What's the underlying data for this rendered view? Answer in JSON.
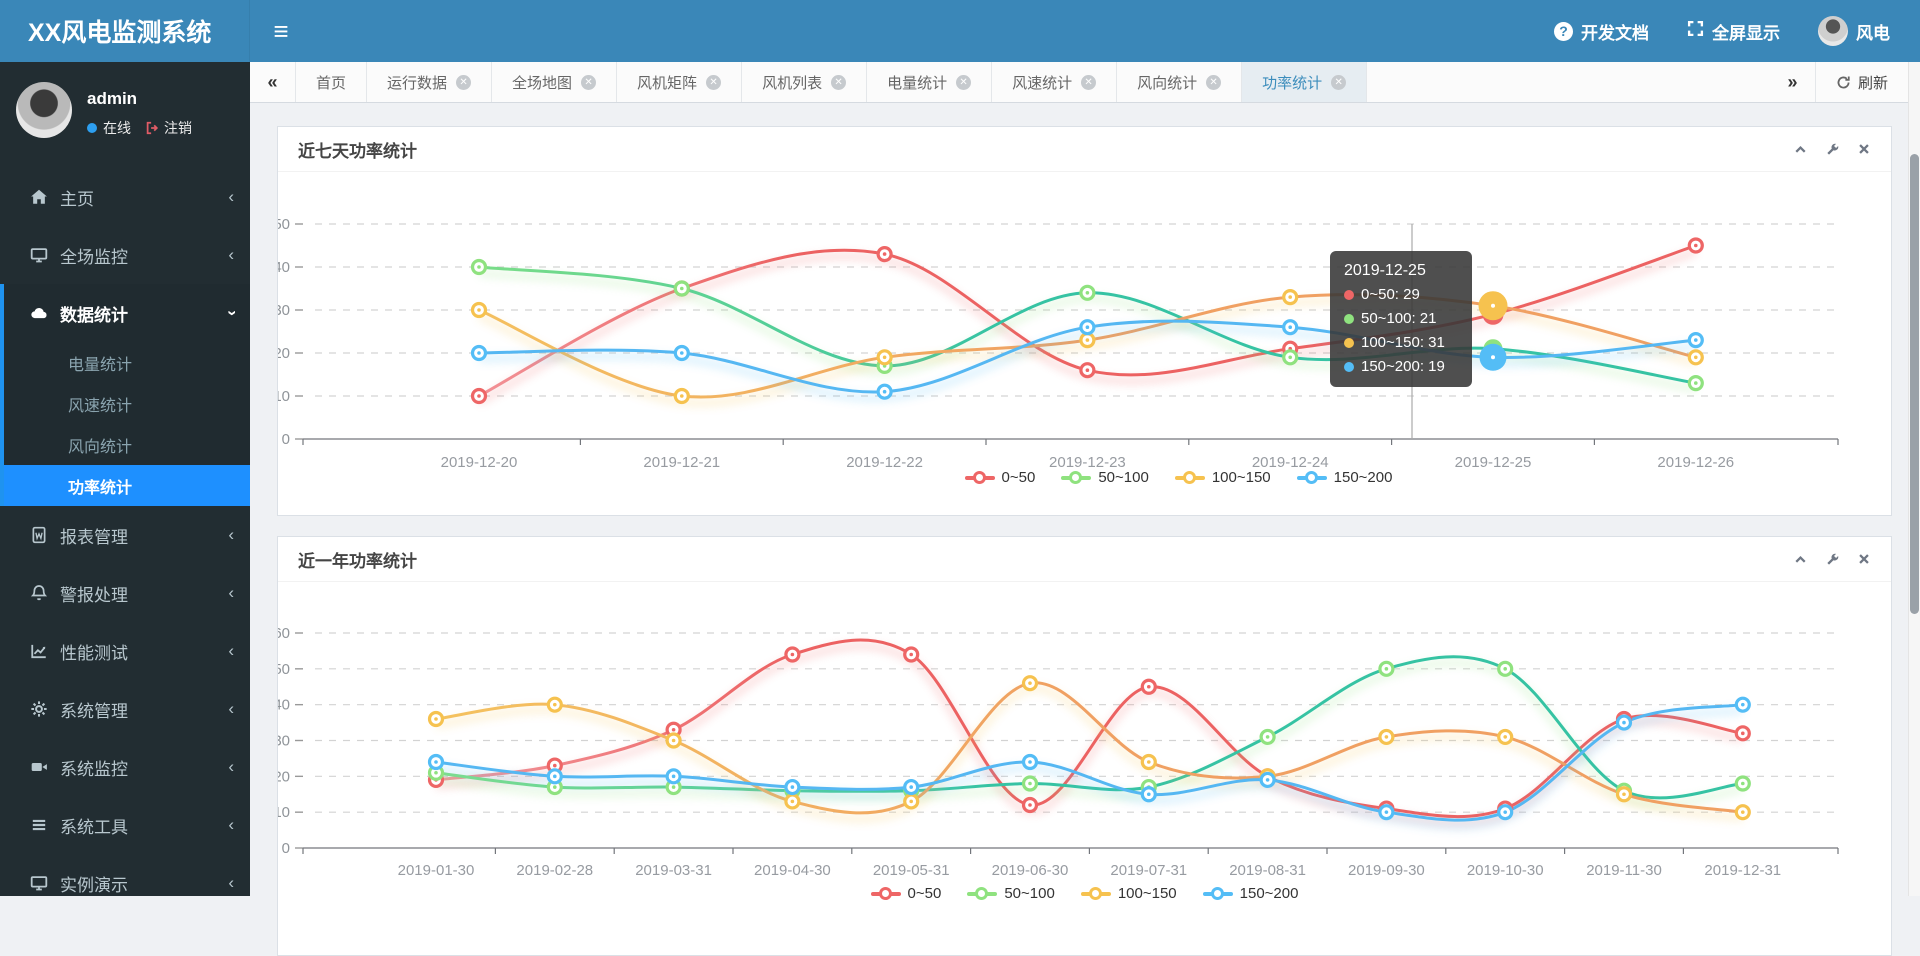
{
  "app": {
    "title": "XX风电监测系统"
  },
  "navbar": {
    "docs_label": "开发文档",
    "fullscreen_label": "全屏显示",
    "user_label": "风电"
  },
  "sidebar": {
    "user": {
      "name": "admin",
      "status": "在线",
      "logout": "注销"
    },
    "items": [
      {
        "label": "主页",
        "icon": "home"
      },
      {
        "label": "全场监控",
        "icon": "monitor"
      },
      {
        "label": "数据统计",
        "icon": "cloud",
        "active": true,
        "expanded": true,
        "children": [
          "电量统计",
          "风速统计",
          "风向统计",
          "功率统计"
        ],
        "active_child": "功率统计"
      },
      {
        "label": "报表管理",
        "icon": "file-word"
      },
      {
        "label": "警报处理",
        "icon": "bell"
      },
      {
        "label": "性能测试",
        "icon": "chart-line"
      },
      {
        "label": "系统管理",
        "icon": "gear"
      },
      {
        "label": "系统监控",
        "icon": "video"
      },
      {
        "label": "系统工具",
        "icon": "bars"
      },
      {
        "label": "实例演示",
        "icon": "desktop"
      }
    ]
  },
  "tabs": {
    "back": "«",
    "forward": "»",
    "refresh_label": "刷新",
    "items": [
      {
        "label": "首页",
        "closable": false,
        "active": false
      },
      {
        "label": "运行数据",
        "closable": true,
        "active": false
      },
      {
        "label": "全场地图",
        "closable": true,
        "active": false
      },
      {
        "label": "风机矩阵",
        "closable": true,
        "active": false
      },
      {
        "label": "风机列表",
        "closable": true,
        "active": false
      },
      {
        "label": "电量统计",
        "closable": true,
        "active": false
      },
      {
        "label": "风速统计",
        "closable": true,
        "active": false
      },
      {
        "label": "风向统计",
        "closable": true,
        "active": false
      },
      {
        "label": "功率统计",
        "closable": true,
        "active": true
      }
    ]
  },
  "panels": [
    {
      "title": "近七天功率统计"
    },
    {
      "title": "近一年功率统计"
    }
  ],
  "chart_data": [
    {
      "type": "line",
      "title": "近七天功率统计",
      "categories": [
        "2019-12-20",
        "2019-12-21",
        "2019-12-22",
        "2019-12-23",
        "2019-12-24",
        "2019-12-25",
        "2019-12-26"
      ],
      "series": [
        {
          "name": "0~50",
          "color": "#ee6666",
          "values": [
            10,
            35,
            43,
            16,
            21,
            29,
            45
          ]
        },
        {
          "name": "50~100",
          "color": "#8fe27f",
          "values": [
            40,
            35,
            17,
            34,
            19,
            21,
            13
          ]
        },
        {
          "name": "100~150",
          "color": "#f6c24f",
          "values": [
            30,
            10,
            19,
            23,
            33,
            31,
            19
          ]
        },
        {
          "name": "150~200",
          "color": "#54bdf6",
          "values": [
            20,
            20,
            11,
            26,
            26,
            19,
            23
          ]
        }
      ],
      "ylim": [
        0,
        50
      ],
      "ytick_step": 10,
      "grid": "dashed",
      "legend_position": "bottom",
      "tooltip": {
        "title": "2019-12-25",
        "rows": [
          {
            "series": "0~50",
            "value": 29
          },
          {
            "series": "50~100",
            "value": 21
          },
          {
            "series": "100~150",
            "value": 31
          },
          {
            "series": "150~200",
            "value": 19
          }
        ]
      }
    },
    {
      "type": "line",
      "title": "近一年功率统计",
      "categories": [
        "2019-01-30",
        "2019-02-28",
        "2019-03-31",
        "2019-04-30",
        "2019-05-31",
        "2019-06-30",
        "2019-07-31",
        "2019-08-31",
        "2019-09-30",
        "2019-10-30",
        "2019-11-30",
        "2019-12-31"
      ],
      "series": [
        {
          "name": "0~50",
          "color": "#ee6666",
          "values": [
            19,
            23,
            33,
            54,
            54,
            12,
            45,
            20,
            11,
            11,
            36,
            32
          ]
        },
        {
          "name": "50~100",
          "color": "#8fe27f",
          "values": [
            21,
            17,
            17,
            16,
            16,
            18,
            17,
            31,
            50,
            50,
            16,
            18
          ]
        },
        {
          "name": "100~150",
          "color": "#f6c24f",
          "values": [
            36,
            40,
            30,
            13,
            13,
            46,
            24,
            20,
            31,
            31,
            15,
            10
          ]
        },
        {
          "name": "150~200",
          "color": "#54bdf6",
          "values": [
            24,
            20,
            20,
            17,
            17,
            24,
            15,
            19,
            10,
            10,
            35,
            40
          ]
        }
      ],
      "ylim": [
        0,
        60
      ],
      "ytick_step": 10,
      "grid": "dashed",
      "legend_position": "bottom"
    }
  ],
  "colors": {
    "navbar": "#3a87b8",
    "sidebar": "#222d32",
    "sidebar_active": "#1e90ff",
    "tab_active_text": "#3c8dbc",
    "series_red": "#ee6666",
    "series_green": "#8fe27f",
    "series_yellow": "#f6c24f",
    "series_blue": "#54bdf6"
  }
}
